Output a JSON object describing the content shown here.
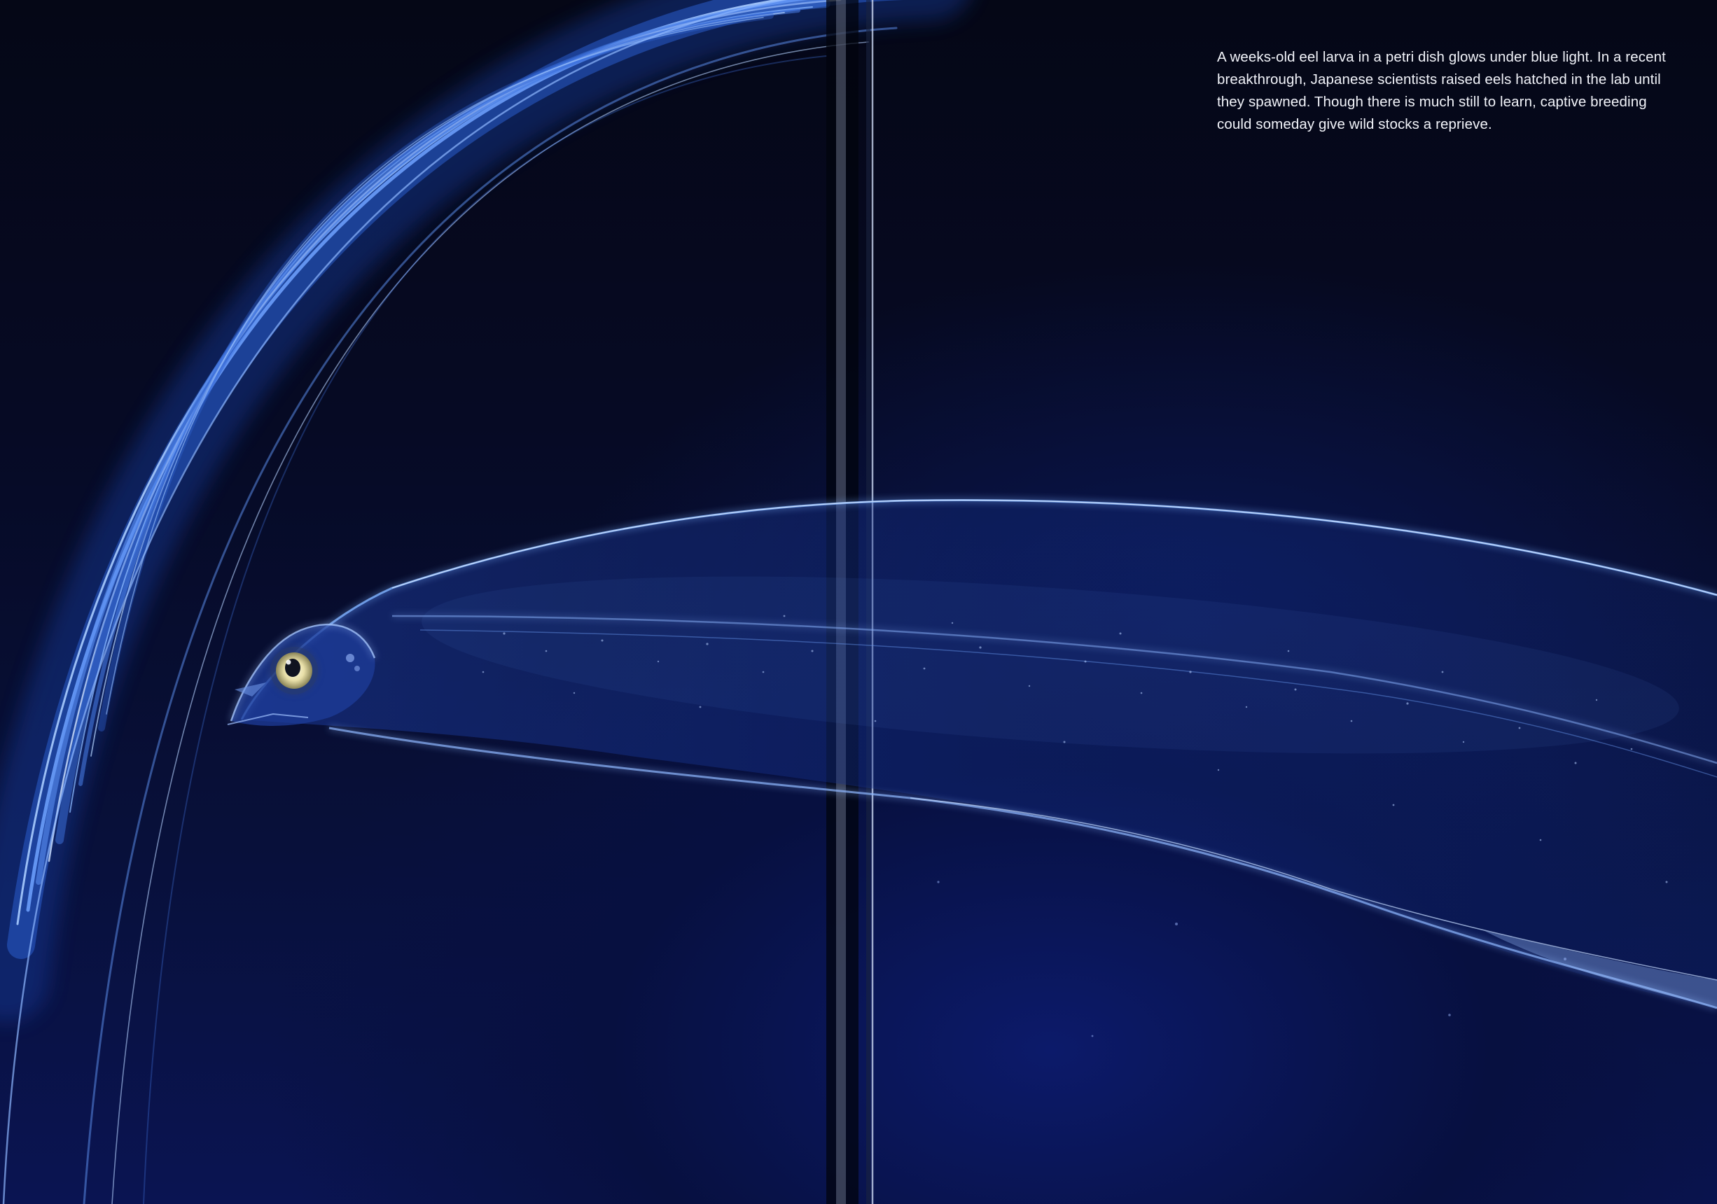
{
  "caption": {
    "text": "A weeks-old eel larva in a petri dish glows under blue light. In a recent breakthrough, Japanese scientists raised eels hatched in the lab until they spawned. Though there is much still to learn, captive breeding could someday give wild stocks a reprieve."
  },
  "colors": {
    "background": "#04081c",
    "deep_blue": "#0a1452",
    "glow_blue": "#7fb2ff",
    "caption_text": "#f2f4fa"
  }
}
